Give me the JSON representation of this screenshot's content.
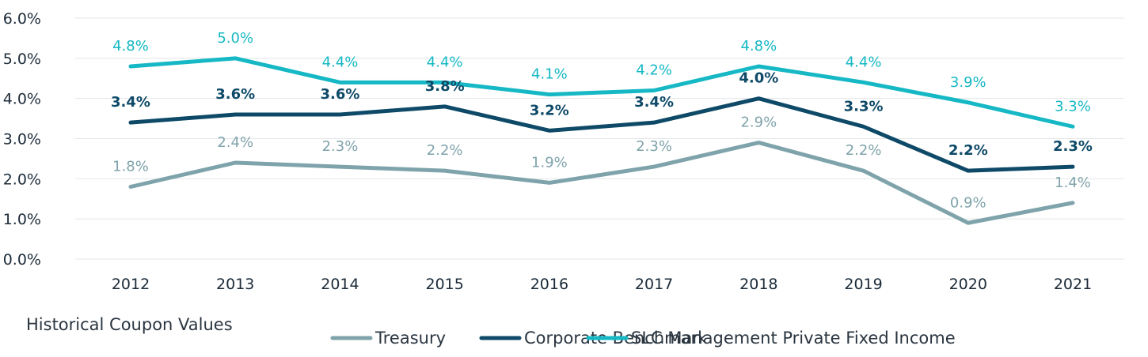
{
  "chart_data": {
    "type": "line",
    "title": "Historical Coupon Values",
    "categories": [
      "2012",
      "2013",
      "2014",
      "2015",
      "2016",
      "2017",
      "2018",
      "2019",
      "2020",
      "2021"
    ],
    "ylim": [
      0,
      6
    ],
    "yticks": [
      "0.0%",
      "1.0%",
      "2.0%",
      "3.0%",
      "4.0%",
      "5.0%",
      "6.0%"
    ],
    "grid": true,
    "legend_position": "bottom-right",
    "series": [
      {
        "name": "Treasury",
        "color": "#7fa3ab",
        "values": [
          1.8,
          2.4,
          2.3,
          2.2,
          1.9,
          2.3,
          2.9,
          2.2,
          0.9,
          1.4
        ],
        "labels": [
          "1.8%",
          "2.4%",
          "2.3%",
          "2.2%",
          "1.9%",
          "2.3%",
          "2.9%",
          "2.2%",
          "0.9%",
          "1.4%"
        ]
      },
      {
        "name": "Corporate Benchmark",
        "color": "#0e4a68",
        "values": [
          3.4,
          3.6,
          3.6,
          3.8,
          3.2,
          3.4,
          4.0,
          3.3,
          2.2,
          2.3
        ],
        "labels": [
          "3.4%",
          "3.6%",
          "3.6%",
          "3.8%",
          "3.2%",
          "3.4%",
          "4.0%",
          "3.3%",
          "2.2%",
          "2.3%"
        ]
      },
      {
        "name": "SLC Management Private Fixed Income",
        "color": "#15b8c4",
        "values": [
          4.8,
          5.0,
          4.4,
          4.4,
          4.1,
          4.2,
          4.8,
          4.4,
          3.9,
          3.3
        ],
        "labels": [
          "4.8%",
          "5.0%",
          "4.4%",
          "4.4%",
          "4.1%",
          "4.2%",
          "4.8%",
          "4.4%",
          "3.9%",
          "3.3%"
        ]
      }
    ]
  }
}
